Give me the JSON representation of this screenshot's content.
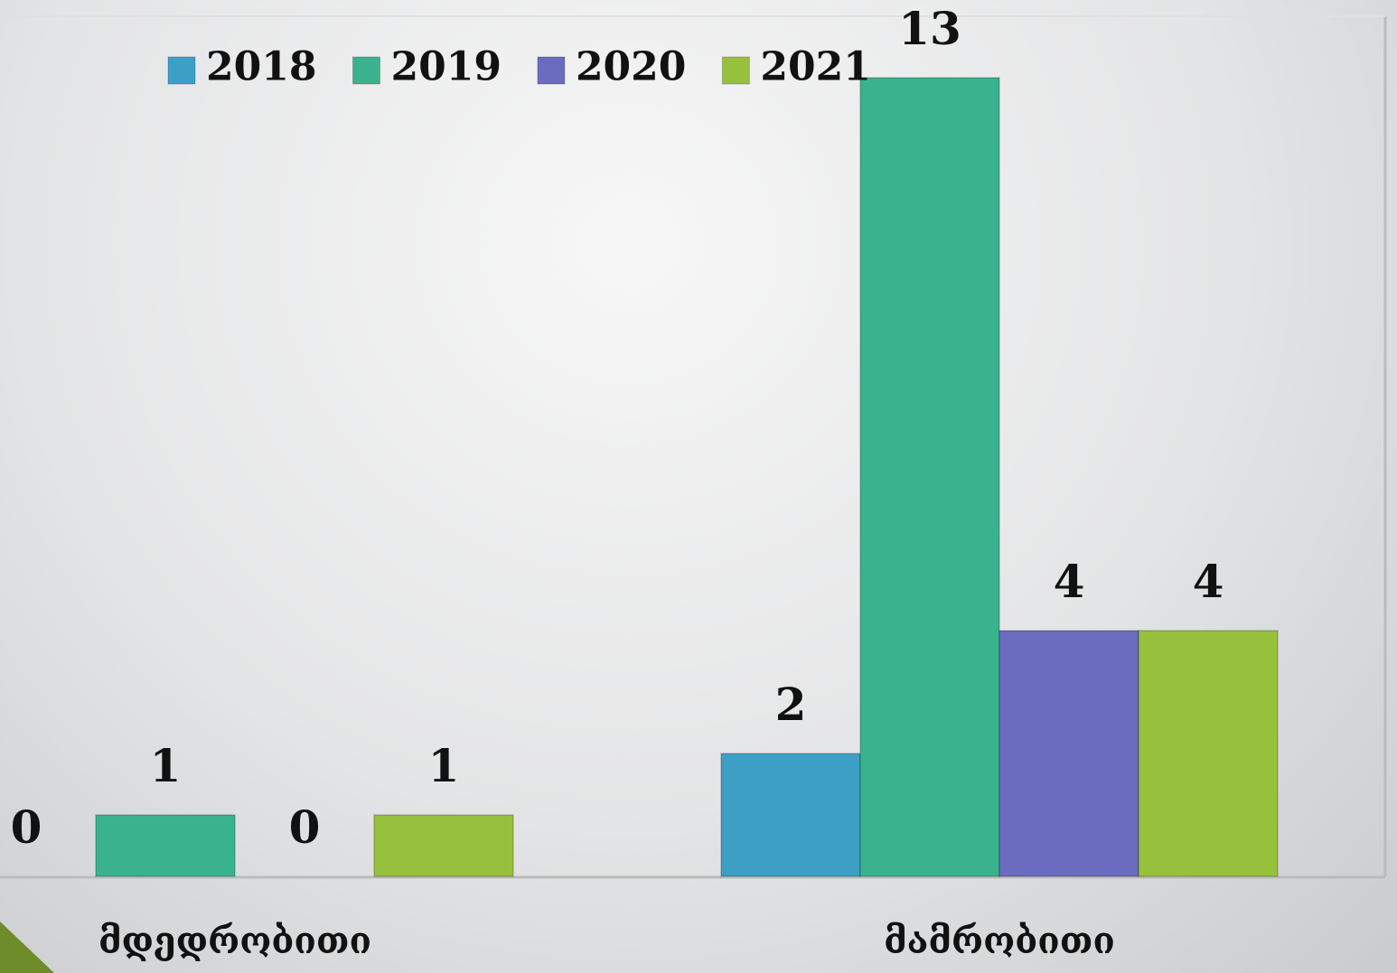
{
  "chart_data": {
    "type": "bar",
    "categories": [
      "მდედრობითი",
      "მამრობითი"
    ],
    "series": [
      {
        "name": "2018",
        "color": "#3d9fc6",
        "values": [
          0,
          2
        ]
      },
      {
        "name": "2019",
        "color": "#3ab28e",
        "values": [
          1,
          13
        ]
      },
      {
        "name": "2020",
        "color": "#6b6bc0",
        "values": [
          0,
          4
        ]
      },
      {
        "name": "2021",
        "color": "#97c13c",
        "values": [
          1,
          4
        ]
      }
    ],
    "legend": "top"
  }
}
